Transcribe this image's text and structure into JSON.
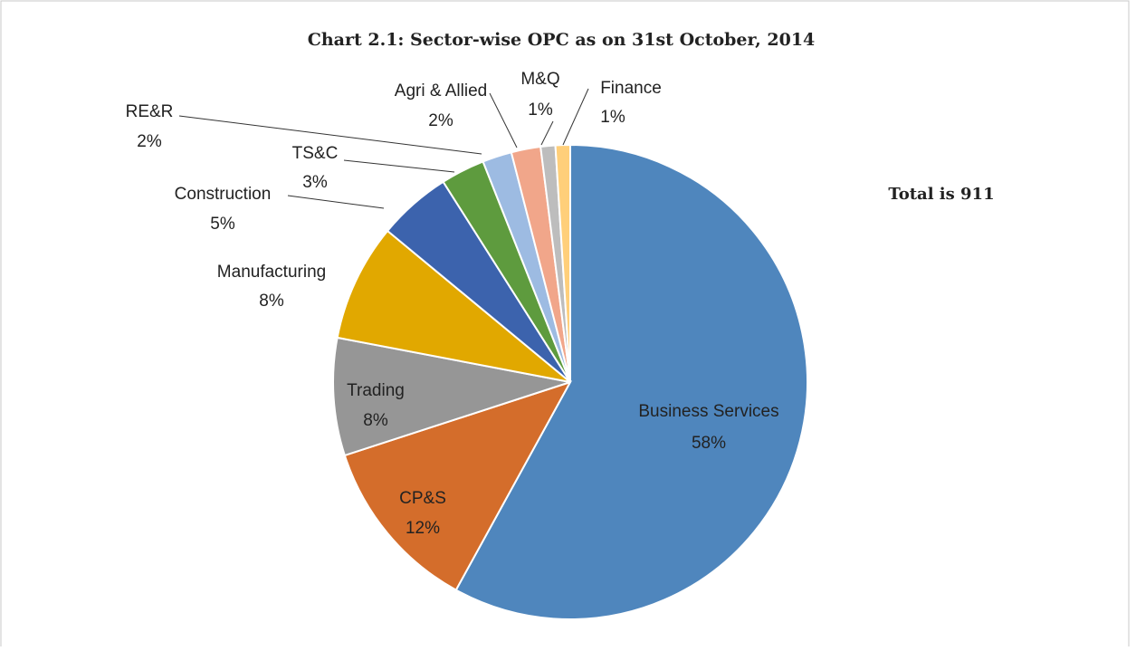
{
  "chart_data": {
    "type": "pie",
    "title": "Chart 2.1: Sector-wise OPC as on 31st October, 2014",
    "annotation": "Total is 911",
    "categories": [
      "Business Services",
      "CP&S",
      "Trading",
      "Manufacturing",
      "Construction",
      "TS&C",
      "RE&R",
      "Agri & Allied",
      "M&Q",
      "Finance"
    ],
    "values": [
      58,
      12,
      8,
      8,
      5,
      3,
      2,
      2,
      1,
      1
    ],
    "value_labels": [
      "58%",
      "12%",
      "8%",
      "8%",
      "5%",
      "3%",
      "2%",
      "2%",
      "1%",
      "1%"
    ],
    "colors": [
      "#4f86bd",
      "#d46d2b",
      "#969696",
      "#e1a800",
      "#3c63ad",
      "#5e9b3e",
      "#9dbbe2",
      "#f1a68a",
      "#bdbdbd",
      "#ffcf7a"
    ]
  }
}
